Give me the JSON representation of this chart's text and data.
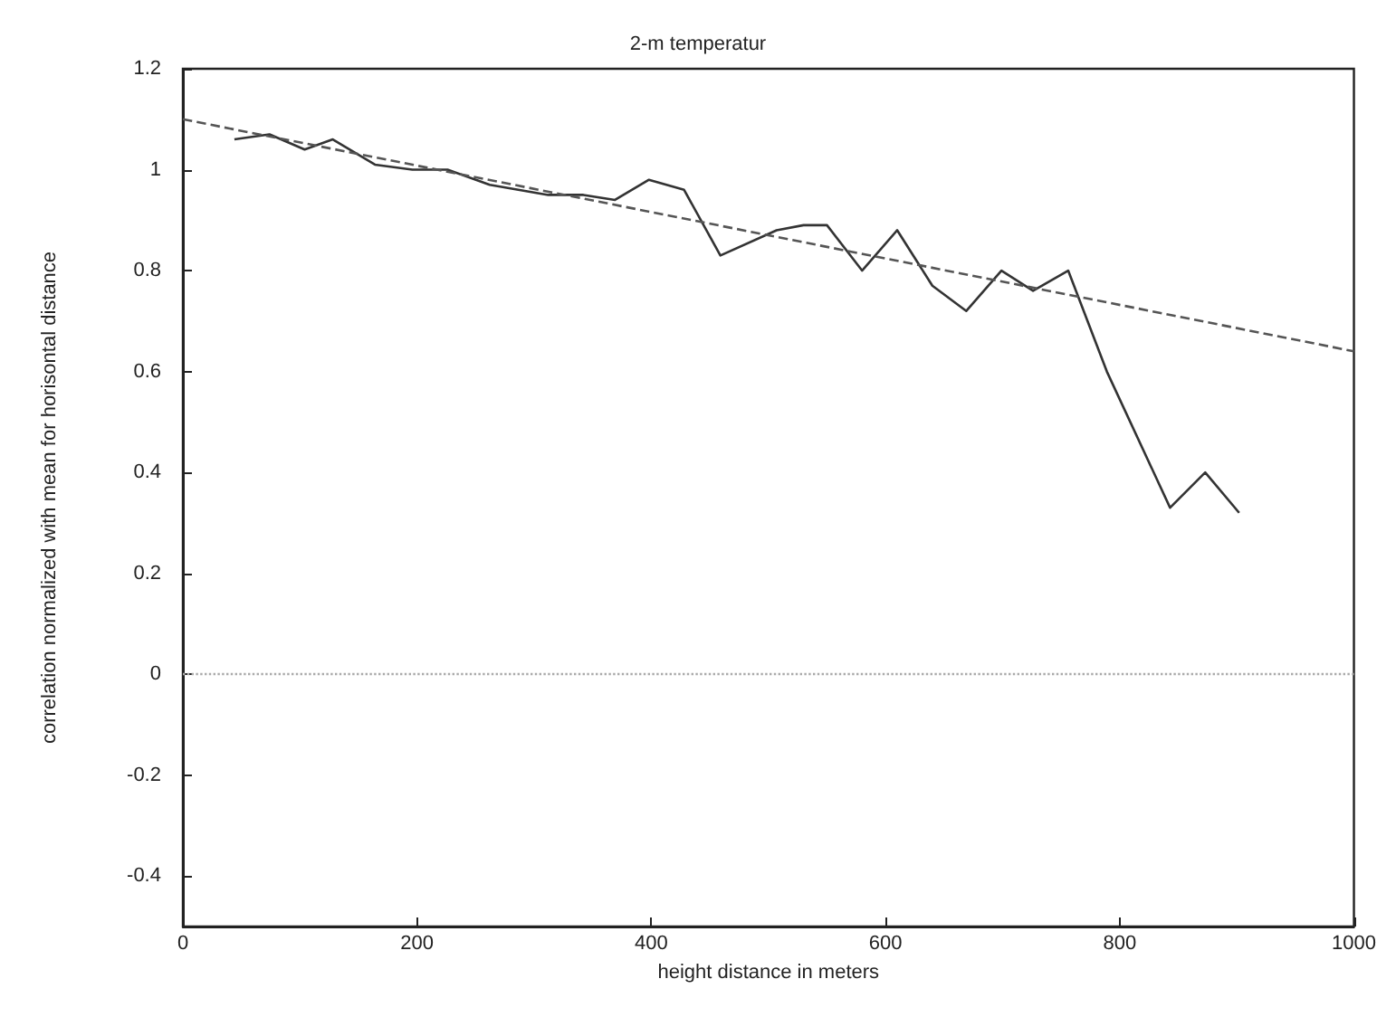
{
  "chart_data": {
    "type": "line",
    "title": "2-m temperatur",
    "xlabel": "height distance in meters",
    "ylabel": "correlation normalized with mean for horisontal distance",
    "xlim": [
      0,
      1000
    ],
    "xticks": [
      0,
      200,
      400,
      600,
      800,
      1000
    ],
    "ylim": [
      -0.5,
      1.2
    ],
    "yticks": [
      -0.4,
      -0.2,
      0,
      0.2,
      0.4,
      0.6,
      0.8,
      1,
      1.2
    ],
    "grid": false,
    "marker": "none",
    "series": [
      {
        "color": "#333333",
        "line_style": "solid",
        "x": [
          44,
          74,
          104,
          128,
          164,
          196,
          226,
          262,
          312,
          342,
          369,
          398,
          428,
          459,
          507,
          530,
          550,
          580,
          610,
          640,
          669,
          699,
          726,
          756,
          789,
          843,
          873,
          902
        ],
        "values": [
          1.06,
          1.07,
          1.04,
          1.06,
          1.01,
          1.0,
          1.0,
          0.97,
          0.95,
          0.95,
          0.94,
          0.98,
          0.96,
          0.83,
          0.88,
          0.89,
          0.89,
          0.8,
          0.88,
          0.77,
          0.72,
          0.8,
          0.76,
          0.8,
          0.6,
          0.33,
          0.4,
          0.32
        ]
      },
      {
        "color": "#555555",
        "line_style": "dashed",
        "x": [
          0,
          1000
        ],
        "values": [
          1.1,
          0.64
        ]
      }
    ],
    "ref_lines": [
      {
        "axis": "y",
        "value": 0,
        "color": "#aaaaaa",
        "line_style": "dotted"
      }
    ]
  }
}
